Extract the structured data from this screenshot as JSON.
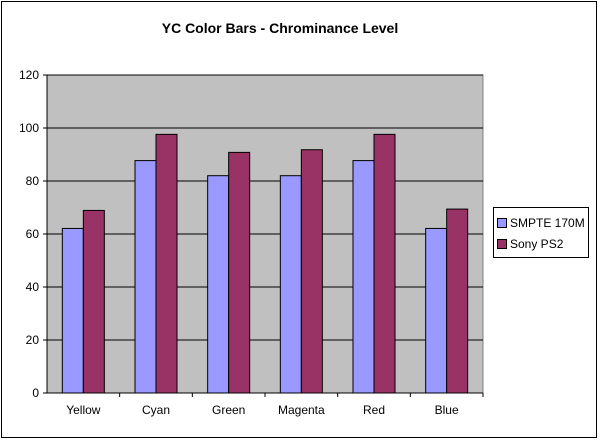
{
  "chart_data": {
    "type": "bar",
    "title": "YC Color Bars - Chrominance Level",
    "categories": [
      "Yellow",
      "Cyan",
      "Green",
      "Magenta",
      "Red",
      "Blue"
    ],
    "series": [
      {
        "name": "SMPTE 170M",
        "color": "#9999ff",
        "values": [
          62.1,
          87.7,
          82.0,
          82.0,
          87.7,
          62.1
        ]
      },
      {
        "name": "Sony PS2",
        "color": "#993366",
        "values": [
          68.9,
          97.6,
          90.8,
          91.8,
          97.6,
          69.4
        ]
      }
    ],
    "ylim": [
      0,
      120
    ],
    "yticks": [
      "0",
      "20",
      "40",
      "60",
      "80",
      "100",
      "120"
    ],
    "xlabel": "",
    "ylabel": "",
    "grid": true,
    "plot_background": "#c0c0c0",
    "legend": "right"
  }
}
